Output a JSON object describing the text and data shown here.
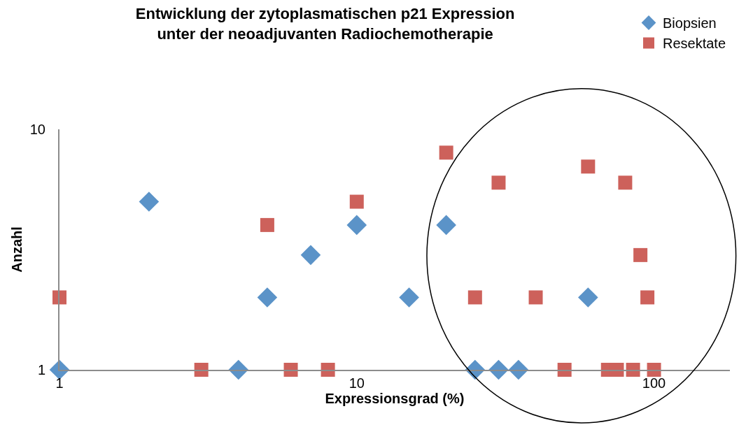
{
  "chart_data": {
    "type": "scatter",
    "title": "Entwicklung der zytoplasmatischen p21 Expression\nunter der neoadjuvanten Radiochemotherapie",
    "xlabel": "Expressionsgrad (%)",
    "ylabel": "Anzahl",
    "log": "xy",
    "series": [
      {
        "name": "Biopsien",
        "color": "#5b93c8",
        "marker": "diamond",
        "x": [
          1,
          2,
          4,
          5,
          7,
          10,
          15,
          20,
          25,
          30,
          35,
          60
        ],
        "values": [
          1,
          5,
          1,
          2,
          3,
          4,
          2,
          4,
          1,
          1,
          1,
          2
        ]
      },
      {
        "name": "Resektate",
        "color": "#cd615b",
        "marker": "square",
        "x": [
          1,
          3,
          5,
          6,
          8,
          10,
          20,
          25,
          30,
          40,
          50,
          60,
          70,
          75,
          80,
          85,
          90,
          95,
          100
        ],
        "values": [
          2,
          1,
          4,
          1,
          1,
          5,
          8,
          2,
          6,
          2,
          1,
          7,
          1,
          1,
          6,
          1,
          3,
          2,
          1
        ]
      }
    ],
    "xlim": [
      1,
      180
    ],
    "ylim": [
      1,
      10
    ],
    "xticks": [
      1,
      10,
      100
    ],
    "yticks": [
      1,
      10
    ],
    "legend": "top right"
  }
}
